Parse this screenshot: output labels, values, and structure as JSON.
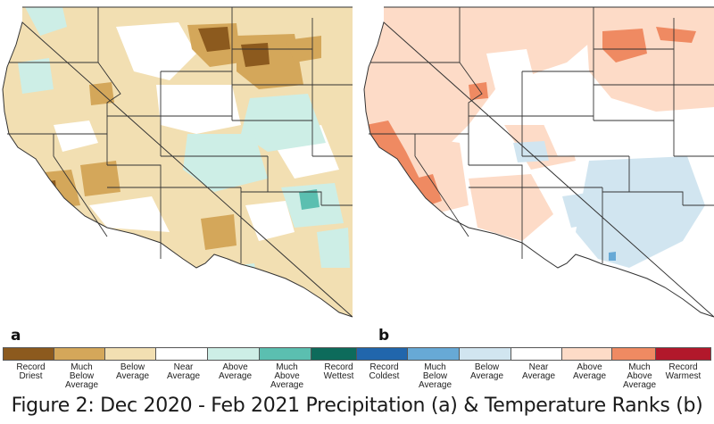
{
  "panel_a": {
    "letter": "a",
    "kind": "precipitation-rank-map"
  },
  "panel_b": {
    "letter": "b",
    "kind": "temperature-rank-map"
  },
  "precip_legend": [
    {
      "label": "Record\nDriest",
      "color": "#8c5a1e"
    },
    {
      "label": "Much\nBelow\nAverage",
      "color": "#d4a75a"
    },
    {
      "label": "Below\nAverage",
      "color": "#f2dfb2"
    },
    {
      "label": "Near\nAverage",
      "color": "#ffffff"
    },
    {
      "label": "Above\nAverage",
      "color": "#cdeee6"
    },
    {
      "label": "Much\nAbove\nAverage",
      "color": "#5bbfb0"
    },
    {
      "label": "Record\nWettest",
      "color": "#0d6b5b"
    }
  ],
  "temp_legend": [
    {
      "label": "Record\nColdest",
      "color": "#2166ac"
    },
    {
      "label": "Much\nBelow\nAverage",
      "color": "#67a9d6"
    },
    {
      "label": "Below\nAverage",
      "color": "#d1e5f0"
    },
    {
      "label": "Near\nAverage",
      "color": "#ffffff"
    },
    {
      "label": "Above\nAverage",
      "color": "#fddbc7"
    },
    {
      "label": "Much\nAbove\nAverage",
      "color": "#ef8a62"
    },
    {
      "label": "Record\nWarmest",
      "color": "#b2182b"
    }
  ],
  "caption": "Figure 2: Dec 2020 - Feb 2021 Precipitation (a) & Temperature Ranks (b)"
}
